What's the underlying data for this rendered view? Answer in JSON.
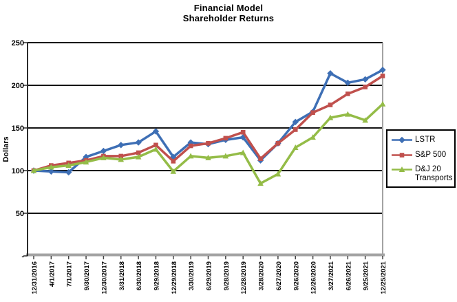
{
  "title": {
    "line1": "Financial Model",
    "line2": "Shareholder Returns"
  },
  "chart_data": {
    "type": "line",
    "title": "Financial Model Shareholder Returns",
    "xlabel": "",
    "ylabel": "Dollars",
    "ylim": [
      0,
      250
    ],
    "yticks": [
      0,
      50,
      100,
      150,
      200,
      250
    ],
    "ytick_labels": [
      "-",
      "50",
      "100",
      "150",
      "200",
      "250"
    ],
    "grid": "horizontal",
    "legend_position": "right",
    "categories": [
      "12/31/2016",
      "4/1/2017",
      "7/1/2017",
      "9/30/2017",
      "12/30/2017",
      "3/31/2018",
      "6/30/2018",
      "9/29/2018",
      "12/29/2018",
      "3/30/2019",
      "6/29/2019",
      "9/28/2019",
      "12/28/2019",
      "3/28/2020",
      "6/27/2020",
      "9/26/2020",
      "12/26/2020",
      "3/27/2021",
      "6/26/2021",
      "9/25/2021",
      "12/25/2021"
    ],
    "series": [
      {
        "name": "LSTR",
        "color": "#3E6FB5",
        "marker": "diamond",
        "values": [
          100,
          99,
          98,
          116,
          123,
          130,
          133,
          146,
          116,
          133,
          131,
          136,
          139,
          112,
          132,
          157,
          169,
          214,
          203,
          207,
          218
        ]
      },
      {
        "name": "S&P 500",
        "color": "#C0504D",
        "marker": "square",
        "values": [
          100,
          106,
          109,
          112,
          117,
          117,
          121,
          130,
          111,
          129,
          132,
          138,
          145,
          114,
          132,
          148,
          168,
          177,
          190,
          198,
          211
        ]
      },
      {
        "name": "D&J 20 Transports",
        "color": "#94BC47",
        "marker": "triangle",
        "values": [
          100,
          104,
          106,
          110,
          115,
          113,
          116,
          125,
          99,
          117,
          115,
          117,
          121,
          85,
          96,
          127,
          139,
          162,
          166,
          159,
          178
        ]
      }
    ]
  }
}
